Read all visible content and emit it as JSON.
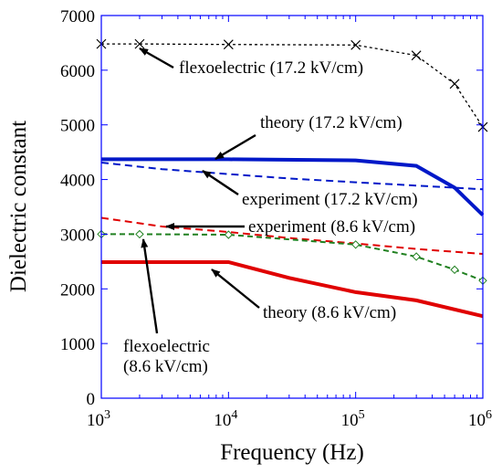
{
  "chart_data": {
    "type": "line",
    "xlabel": "Frequency (Hz)",
    "ylabel": "Dielectric constant",
    "x_scale": "log",
    "xlim": [
      1000,
      1000000
    ],
    "ylim": [
      0,
      7000
    ],
    "x_ticks": [
      {
        "base": "10",
        "exp": "3"
      },
      {
        "base": "10",
        "exp": "4"
      },
      {
        "base": "10",
        "exp": "5"
      },
      {
        "base": "10",
        "exp": "6"
      }
    ],
    "y_ticks": [
      "0",
      "1000",
      "2000",
      "3000",
      "4000",
      "5000",
      "6000",
      "7000"
    ],
    "grid": false,
    "series": [
      {
        "name": "flexoelectric (17.2 kV/cm)",
        "color": "#000000",
        "style": "dotted",
        "marker": "x",
        "x": [
          1000,
          2000,
          10000,
          100000,
          300000,
          600000,
          1000000
        ],
        "y": [
          6480,
          6480,
          6470,
          6460,
          6270,
          5750,
          4960
        ]
      },
      {
        "name": "theory (17.2 kV/cm)",
        "color": "#0018c8",
        "style": "solid-thick",
        "marker": "none",
        "x": [
          1000,
          10000,
          100000,
          300000,
          600000,
          1000000
        ],
        "y": [
          4370,
          4370,
          4350,
          4250,
          3850,
          3350
        ]
      },
      {
        "name": "experiment (17.2 kV/cm)",
        "color": "#0018c8",
        "style": "dashed",
        "marker": "none",
        "x": [
          1000,
          3000,
          10000,
          30000,
          100000,
          300000,
          1000000
        ],
        "y": [
          4310,
          4190,
          4100,
          4020,
          3950,
          3890,
          3820
        ]
      },
      {
        "name": "experiment (8.6 kV/cm)",
        "color": "#e00000",
        "style": "dashed",
        "marker": "none",
        "x": [
          1000,
          3000,
          10000,
          30000,
          100000,
          300000,
          1000000
        ],
        "y": [
          3300,
          3140,
          3040,
          2930,
          2830,
          2730,
          2640
        ]
      },
      {
        "name": "flexoelectric (8.6 kV/cm)",
        "color": "#208020",
        "style": "dashed",
        "marker": "diamond",
        "x": [
          1000,
          2000,
          10000,
          100000,
          300000,
          600000,
          1000000
        ],
        "y": [
          3000,
          3000,
          2990,
          2810,
          2590,
          2350,
          2150
        ]
      },
      {
        "name": "theory (8.6 kV/cm)",
        "color": "#e00000",
        "style": "solid-thick",
        "marker": "none",
        "x": [
          1000,
          10000,
          30000,
          100000,
          300000,
          1000000
        ],
        "y": [
          2490,
          2490,
          2200,
          1940,
          1790,
          1500
        ]
      }
    ],
    "annotations": [
      {
        "label": "flexoelectric (17.2 kV/cm)",
        "series": 0
      },
      {
        "label": "theory (17.2 kV/cm)",
        "series": 1
      },
      {
        "label": "experiment (17.2 kV/cm)",
        "series": 2
      },
      {
        "label": "experiment (8.6 kV/cm)",
        "series": 3
      },
      {
        "label": "theory (8.6 kV/cm)",
        "series": 5
      },
      {
        "label": "flexoelectric\n(8.6 kV/cm)",
        "lines": [
          "flexoelectric",
          "(8.6 kV/cm)"
        ],
        "series": 4
      }
    ]
  }
}
